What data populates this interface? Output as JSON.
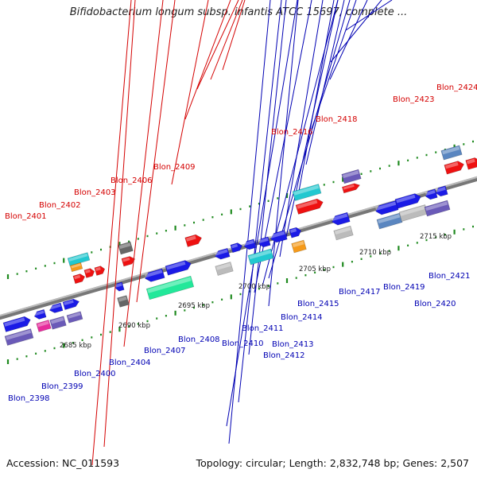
{
  "title": "Bifidobacterium longum subsp. infantis ATCC 15697, complete ...",
  "accession": "Accession: NC_011593",
  "summary": "Topology: circular; Length: 2,832,748 bp; Genes: 2,507",
  "colors": {
    "blue": "#1a1ae6",
    "red": "#ee1111",
    "cyan": "#22c8d0",
    "grey": "#bbbbbb",
    "darkgrey": "#666666",
    "orange": "#f59a1a",
    "green": "#22e89a",
    "purple": "#6a5ab8",
    "magenta": "#e62c9c",
    "steel": "#5a86c0",
    "label_red": "#d40000",
    "label_blue": "#0000b3"
  },
  "kbp_ticks": [
    "2685 kbp",
    "2690 kbp",
    "2695 kbp",
    "2700 kbp",
    "2705 kbp",
    "2710 kbp",
    "2715 kbp"
  ],
  "labels_top": [
    "Blon_2401",
    "Blon_2402",
    "Blon_2403",
    "Blon_2406",
    "Blon_2409",
    "Blon_2416",
    "Blon_2418",
    "Blon_2423",
    "Blon_2424"
  ],
  "labels_bottom": [
    "Blon_2398",
    "Blon_2399",
    "Blon_2400",
    "Blon_2404",
    "Blon_2407",
    "Blon_2408",
    "Blon_2410",
    "Blon_2411",
    "Blon_2412",
    "Blon_2413",
    "Blon_2414",
    "Blon_2415",
    "Blon_2417",
    "Blon_2419",
    "Blon_2420",
    "Blon_2421"
  ]
}
